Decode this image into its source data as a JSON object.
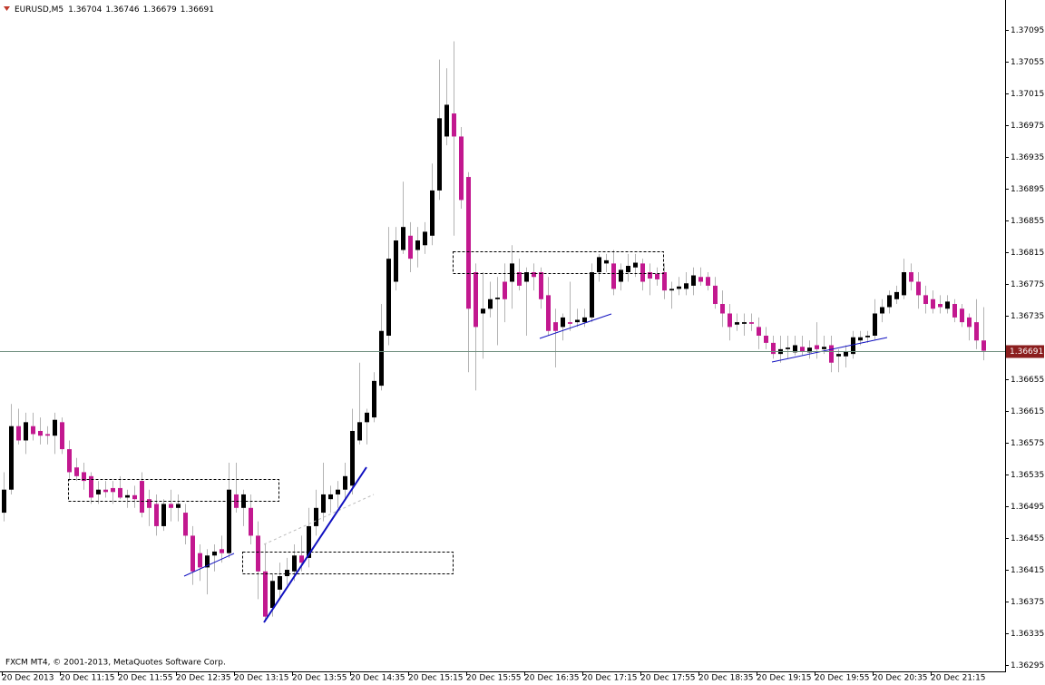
{
  "chart_data": {
    "type": "candlestick",
    "symbol": "EURUSD,M5",
    "footer": "FXCM MT4, © 2001-2013, MetaQuotes Software Corp.",
    "categories": [
      "20 Dec 2013",
      null,
      null,
      null,
      null,
      null,
      null,
      null,
      "20 Dec 11:15",
      null,
      null,
      null,
      null,
      null,
      null,
      null,
      "20 Dec 11:55",
      null,
      null,
      null,
      null,
      null,
      null,
      null,
      "20 Dec 12:35",
      null,
      null,
      null,
      null,
      null,
      null,
      null,
      "20 Dec 13:15",
      null,
      null,
      null,
      null,
      null,
      null,
      null,
      "20 Dec 13:55",
      null,
      null,
      null,
      null,
      null,
      null,
      null,
      "20 Dec 14:35",
      null,
      null,
      null,
      null,
      null,
      null,
      null,
      "20 Dec 15:15",
      null,
      null,
      null,
      null,
      null,
      null,
      null,
      "20 Dec 15:55",
      null,
      null,
      null,
      null,
      null,
      null,
      null,
      "20 Dec 16:35",
      null,
      null,
      null,
      null,
      null,
      null,
      null,
      "20 Dec 17:15",
      null,
      null,
      null,
      null,
      null,
      null,
      null,
      "20 Dec 17:55",
      null,
      null,
      null,
      null,
      null,
      null,
      null,
      "20 Dec 18:35",
      null,
      null,
      null,
      null,
      null,
      null,
      null,
      "20 Dec 19:15",
      null,
      null,
      null,
      null,
      null,
      null,
      null,
      "20 Dec 19:55",
      null,
      null,
      null,
      null,
      null,
      null,
      null,
      "20 Dec 20:35",
      null,
      null,
      null,
      null,
      null,
      null,
      null,
      "20 Dec 21:15",
      null,
      null,
      null,
      null,
      null,
      null,
      null
    ],
    "open": [
      1.36487,
      1.36516,
      1.36596,
      1.36578,
      1.36596,
      1.3659,
      1.36586,
      1.36584,
      1.36601,
      1.36567,
      1.36544,
      1.36538,
      1.36533,
      1.3651,
      1.36516,
      1.36518,
      1.36518,
      1.36506,
      1.36509,
      1.36527,
      1.36504,
      1.36498,
      1.3647,
      1.36498,
      1.36493,
      1.36487,
      1.36458,
      1.36436,
      1.36418,
      1.36433,
      1.36441,
      1.36436,
      1.3651,
      1.36493,
      1.36493,
      1.36458,
      1.36413,
      1.36367,
      1.3639,
      1.36407,
      1.36413,
      1.36433,
      1.3643,
      1.3647,
      1.36487,
      1.36504,
      1.3651,
      1.36516,
      1.36521,
      1.36578,
      1.36601,
      1.36607,
      1.36647,
      1.3671,
      1.36778,
      1.36818,
      1.36836,
      1.36818,
      1.36824,
      1.36836,
      1.36893,
      1.36961,
      1.3699,
      1.36961,
      1.3691,
      1.3679,
      1.36738,
      1.36744,
      1.36756,
      1.36778,
      1.36778,
      1.3679,
      1.36778,
      1.3679,
      1.3679,
      1.36761,
      1.36727,
      1.36721,
      1.36727,
      1.36727,
      1.36727,
      1.36733,
      1.3679,
      1.36801,
      1.36801,
      1.36778,
      1.3679,
      1.36796,
      1.36801,
      1.3679,
      1.36788,
      1.3679,
      1.36767,
      1.36769,
      1.36769,
      1.36773,
      1.36784,
      1.36784,
      1.36773,
      1.3675,
      1.36738,
      1.36724,
      1.36725,
      1.36727,
      1.36721,
      1.3671,
      1.36701,
      1.36687,
      1.36693,
      1.36689,
      1.36696,
      1.36689,
      1.36698,
      1.36693,
      1.36698,
      1.36684,
      1.36684,
      1.36687,
      1.36704,
      1.36708,
      1.3671,
      1.36738,
      1.36746,
      1.36756,
      1.36761,
      1.3679,
      1.36778,
      1.36761,
      1.36756,
      1.3675,
      1.36744,
      1.3675,
      1.36744,
      1.36733,
      1.36727,
      1.36704
    ],
    "high": [
      1.36538,
      1.36624,
      1.36618,
      1.36613,
      1.36613,
      1.36607,
      1.36596,
      1.36613,
      1.36607,
      1.36578,
      1.36556,
      1.3655,
      1.36538,
      1.36527,
      1.36527,
      1.36527,
      1.36533,
      1.36516,
      1.36521,
      1.36538,
      1.36516,
      1.3651,
      1.36504,
      1.36516,
      1.3651,
      1.36498,
      1.3647,
      1.36447,
      1.36441,
      1.36447,
      1.36458,
      1.3655,
      1.3655,
      1.36516,
      1.3651,
      1.36476,
      1.36447,
      1.3641,
      1.36424,
      1.3643,
      1.36447,
      1.36458,
      1.36493,
      1.36516,
      1.3655,
      1.36521,
      1.36527,
      1.3655,
      1.36618,
      1.36676,
      1.36618,
      1.36664,
      1.3675,
      1.36847,
      1.36847,
      1.36904,
      1.36853,
      1.36847,
      1.36853,
      1.36927,
      1.37058,
      1.37047,
      1.37081,
      1.36973,
      1.36916,
      1.36801,
      1.3679,
      1.36778,
      1.36784,
      1.36801,
      1.36824,
      1.36807,
      1.36796,
      1.36801,
      1.36796,
      1.36784,
      1.36744,
      1.36738,
      1.36778,
      1.36744,
      1.36744,
      1.36801,
      1.36813,
      1.36813,
      1.36818,
      1.36801,
      1.36813,
      1.36813,
      1.36807,
      1.36801,
      1.36796,
      1.36801,
      1.36778,
      1.36784,
      1.3679,
      1.36796,
      1.36796,
      1.3679,
      1.36784,
      1.36767,
      1.3675,
      1.36738,
      1.36738,
      1.36738,
      1.36733,
      1.36721,
      1.3671,
      1.3671,
      1.3671,
      1.3671,
      1.3671,
      1.36704,
      1.36727,
      1.3671,
      1.3671,
      1.36693,
      1.36698,
      1.36716,
      1.36716,
      1.36716,
      1.36756,
      1.36756,
      1.36767,
      1.36773,
      1.36807,
      1.36801,
      1.3679,
      1.36773,
      1.36767,
      1.36761,
      1.36761,
      1.36756,
      1.3675,
      1.36738,
      1.36756,
      1.36746
    ],
    "low": [
      1.36476,
      1.3651,
      1.36573,
      1.36561,
      1.36578,
      1.36573,
      1.36573,
      1.36561,
      1.36561,
      1.36527,
      1.36527,
      1.36516,
      1.36498,
      1.36498,
      1.36506,
      1.36498,
      1.36504,
      1.36493,
      1.36493,
      1.36481,
      1.3647,
      1.36458,
      1.36464,
      1.36476,
      1.36476,
      1.36447,
      1.36396,
      1.36401,
      1.36384,
      1.36413,
      1.36424,
      1.3643,
      1.36487,
      1.3647,
      1.36447,
      1.36378,
      1.3635,
      1.36356,
      1.36378,
      1.36396,
      1.36401,
      1.36413,
      1.36418,
      1.36458,
      1.36476,
      1.36487,
      1.36493,
      1.36504,
      1.3651,
      1.36573,
      1.36573,
      1.36601,
      1.36641,
      1.36698,
      1.36767,
      1.36813,
      1.3679,
      1.36796,
      1.36813,
      1.36824,
      1.36881,
      1.3695,
      1.36836,
      1.3687,
      1.36664,
      1.36641,
      1.36681,
      1.36733,
      1.36698,
      1.36727,
      1.36744,
      1.36767,
      1.3671,
      1.36767,
      1.36744,
      1.3671,
      1.3667,
      1.36704,
      1.36716,
      1.36721,
      1.36721,
      1.36727,
      1.36778,
      1.3679,
      1.36761,
      1.36767,
      1.36778,
      1.36784,
      1.36767,
      1.36761,
      1.36773,
      1.36756,
      1.36744,
      1.36761,
      1.36761,
      1.36761,
      1.36773,
      1.36767,
      1.36744,
      1.36721,
      1.36704,
      1.36716,
      1.3671,
      1.36716,
      1.36693,
      1.36693,
      1.36681,
      1.36676,
      1.36681,
      1.36685,
      1.36685,
      1.36681,
      1.36681,
      1.36687,
      1.36664,
      1.36664,
      1.3667,
      1.36681,
      1.36698,
      1.36701,
      1.36704,
      1.36727,
      1.36738,
      1.3675,
      1.36756,
      1.36767,
      1.36744,
      1.36738,
      1.36738,
      1.36738,
      1.36738,
      1.36727,
      1.36721,
      1.36704,
      1.36693,
      1.36679
    ],
    "close": [
      1.36516,
      1.36596,
      1.36578,
      1.36601,
      1.36586,
      1.36584,
      1.36584,
      1.36604,
      1.36567,
      1.36538,
      1.36533,
      1.36527,
      1.36506,
      1.36516,
      1.36513,
      1.36513,
      1.36506,
      1.36509,
      1.36504,
      1.36487,
      1.36493,
      1.3647,
      1.36498,
      1.36493,
      1.36498,
      1.36458,
      1.36413,
      1.36418,
      1.36433,
      1.36438,
      1.36436,
      1.36516,
      1.36493,
      1.3651,
      1.36458,
      1.36413,
      1.36356,
      1.36401,
      1.36407,
      1.36415,
      1.36433,
      1.36424,
      1.3647,
      1.36493,
      1.3651,
      1.3651,
      1.36516,
      1.36533,
      1.3659,
      1.36601,
      1.36613,
      1.36653,
      1.36716,
      1.36807,
      1.3683,
      1.36847,
      1.36807,
      1.3683,
      1.36841,
      1.36893,
      1.36984,
      1.37001,
      1.36961,
      1.36881,
      1.36744,
      1.36721,
      1.36744,
      1.36756,
      1.36758,
      1.36756,
      1.36801,
      1.36773,
      1.3679,
      1.36784,
      1.36756,
      1.36716,
      1.36716,
      1.36733,
      1.36725,
      1.3673,
      1.36733,
      1.3679,
      1.36809,
      1.36805,
      1.36769,
      1.36793,
      1.36798,
      1.36802,
      1.36778,
      1.36782,
      1.36781,
      1.36767,
      1.36769,
      1.36772,
      1.36776,
      1.36786,
      1.36778,
      1.36773,
      1.3675,
      1.36738,
      1.36721,
      1.36727,
      1.36727,
      1.36725,
      1.3671,
      1.36701,
      1.36687,
      1.36693,
      1.36695,
      1.36698,
      1.3669,
      1.36695,
      1.36693,
      1.36696,
      1.36676,
      1.36687,
      1.3669,
      1.36708,
      1.36708,
      1.3671,
      1.36738,
      1.36746,
      1.36761,
      1.36765,
      1.3679,
      1.36778,
      1.36761,
      1.3675,
      1.36744,
      1.36746,
      1.36753,
      1.36733,
      1.36727,
      1.36721,
      1.36704,
      1.36691
    ],
    "up_color": "#000000",
    "down_color": "#c2188f",
    "wick_color": "#b4b4b4",
    "price_line_color": "#6e8e7e",
    "price_label_color": "#8b1e1e",
    "ylim": [
      1.36287,
      1.37133
    ],
    "yticks": [
      1.37095,
      1.37055,
      1.37015,
      1.36975,
      1.36935,
      1.36895,
      1.36855,
      1.36815,
      1.36775,
      1.36735,
      1.36655,
      1.36615,
      1.36575,
      1.36535,
      1.36495,
      1.36455,
      1.36415,
      1.36375,
      1.36335,
      1.36295
    ]
  }
}
